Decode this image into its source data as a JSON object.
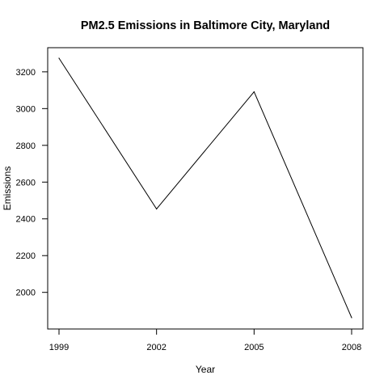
{
  "chart_data": {
    "type": "line",
    "title": "PM2.5 Emissions in Baltimore City, Maryland",
    "xlabel": "Year",
    "ylabel": "Emissions",
    "x": [
      1999,
      2002,
      2005,
      2008
    ],
    "series": [
      {
        "values": [
          3274.18,
          2453.92,
          3091.35,
          1862.28
        ]
      }
    ],
    "xticks": [
      1999,
      2002,
      2005,
      2008
    ],
    "yticks": [
      2000,
      2200,
      2400,
      2600,
      2800,
      3000,
      3200
    ],
    "xlim": [
      1999,
      2008
    ],
    "ylim": [
      1862.28,
      3274.18
    ],
    "grid": false,
    "line_color": "#000000"
  }
}
